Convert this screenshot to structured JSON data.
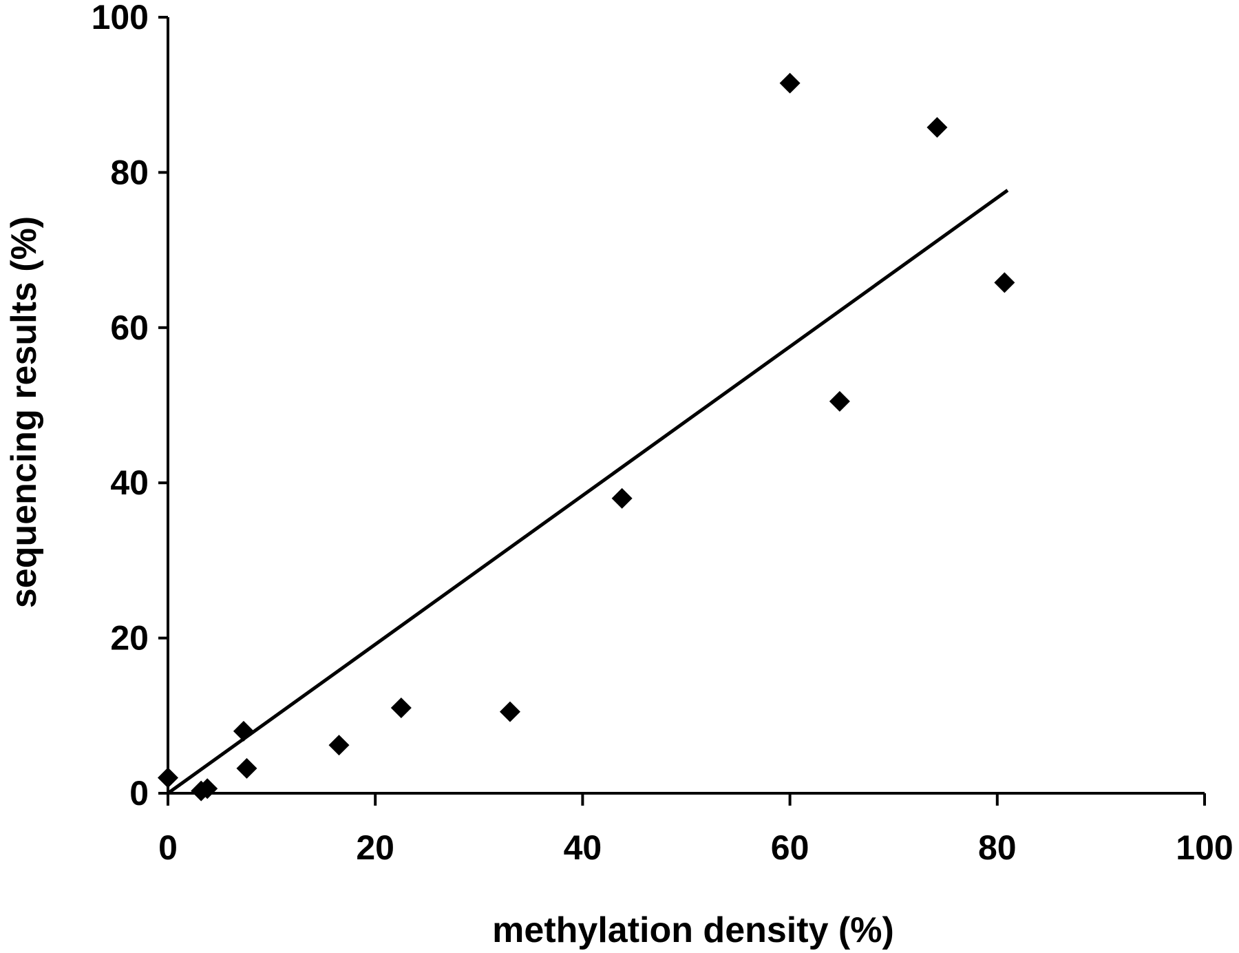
{
  "chart_data": {
    "type": "scatter",
    "title": "",
    "xlabel": "methylation density (%)",
    "ylabel": "sequencing results (%)",
    "xlim": [
      0,
      100
    ],
    "ylim": [
      0,
      100
    ],
    "x_ticks": [
      "0",
      "20",
      "40",
      "60",
      "80",
      "100"
    ],
    "y_ticks": [
      "0",
      "20",
      "40",
      "60",
      "80",
      "100"
    ],
    "grid": false,
    "legend": "none",
    "marker": "diamond",
    "colors": {
      "marker": "#000000",
      "line": "#000000",
      "axis": "#000000"
    },
    "series": [
      {
        "type": "scatter",
        "points": [
          {
            "x": 0,
            "y": 2
          },
          {
            "x": 3.2,
            "y": 0.3
          },
          {
            "x": 3.8,
            "y": 0.6
          },
          {
            "x": 7.3,
            "y": 8
          },
          {
            "x": 7.6,
            "y": 3.2
          },
          {
            "x": 16.5,
            "y": 6.2
          },
          {
            "x": 22.5,
            "y": 11
          },
          {
            "x": 33,
            "y": 10.5
          },
          {
            "x": 43.8,
            "y": 38
          },
          {
            "x": 60,
            "y": 91.5
          },
          {
            "x": 64.8,
            "y": 50.5
          },
          {
            "x": 74.2,
            "y": 85.8
          },
          {
            "x": 80.7,
            "y": 65.8
          }
        ]
      },
      {
        "type": "line",
        "points": [
          {
            "x": 0,
            "y": 0
          },
          {
            "x": 81,
            "y": 77.7
          }
        ]
      }
    ]
  }
}
